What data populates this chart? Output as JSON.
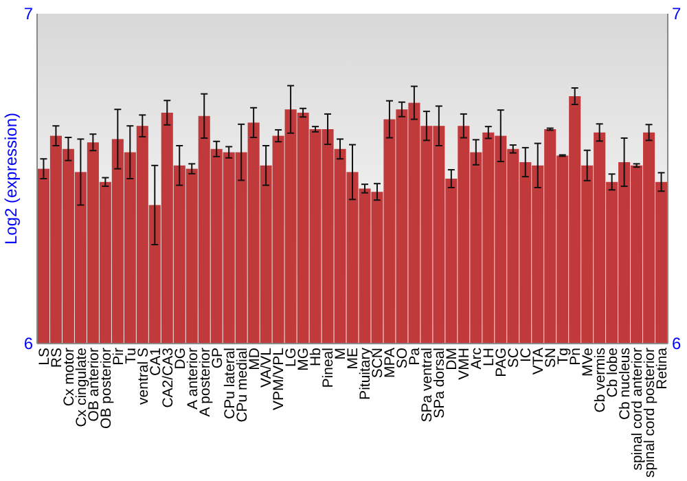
{
  "chart_data": {
    "type": "bar",
    "ylabel": "Log2 (expression)",
    "categories": [
      "LS",
      "RS",
      "Cx motor",
      "Cx cingulate",
      "OB anterior",
      "OB posterior",
      "Pir",
      "Tu",
      "ventral S",
      "CA1",
      "CA2/CA3",
      "DG",
      "A anterior",
      "A posterior",
      "GP",
      "CPu lateral",
      "CPu medial",
      "MD",
      "VA/VL",
      "VPM/VPL",
      "LG",
      "MG",
      "Hb",
      "Pineal",
      "M",
      "ME",
      "Pituitary",
      "SCN",
      "MPA",
      "SO",
      "Pa",
      "SPa ventral",
      "SPa dorsal",
      "DM",
      "VMH",
      "Arc",
      "LH",
      "PAG",
      "SC",
      "IC",
      "VTA",
      "SN",
      "Tg",
      "Pn",
      "MVe",
      "Cb vermis",
      "Cb lobe",
      "Cb nucleus",
      "spinal cord anterior",
      "spinal cord posterior",
      "Retina"
    ],
    "values": [
      6.53,
      6.63,
      6.59,
      6.52,
      6.61,
      6.49,
      6.62,
      6.58,
      6.66,
      6.42,
      6.7,
      6.54,
      6.53,
      6.69,
      6.59,
      6.58,
      6.58,
      6.67,
      6.54,
      6.63,
      6.71,
      6.7,
      6.65,
      6.65,
      6.59,
      6.52,
      6.47,
      6.46,
      6.68,
      6.71,
      6.73,
      6.66,
      6.66,
      6.5,
      6.66,
      6.58,
      6.64,
      6.63,
      6.59,
      6.55,
      6.54,
      6.65,
      6.57,
      6.75,
      6.54,
      6.64,
      6.49,
      6.55,
      6.54,
      6.64,
      6.49
    ],
    "errors": [
      0.03,
      0.03,
      0.035,
      0.1,
      0.025,
      0.013,
      0.09,
      0.08,
      0.033,
      0.12,
      0.037,
      0.06,
      0.015,
      0.067,
      0.023,
      0.017,
      0.085,
      0.045,
      0.06,
      0.018,
      0.072,
      0.013,
      0.008,
      0.046,
      0.03,
      0.083,
      0.013,
      0.025,
      0.056,
      0.022,
      0.05,
      0.044,
      0.06,
      0.027,
      0.036,
      0.038,
      0.018,
      0.078,
      0.012,
      0.044,
      0.067,
      0.003,
      0.002,
      0.025,
      0.046,
      0.026,
      0.024,
      0.073,
      0.005,
      0.024,
      0.028
    ],
    "color": "#c0393b",
    "ylim": [
      6,
      7
    ],
    "yticks": [
      6,
      7
    ],
    "y2lim": [
      6,
      7
    ],
    "y2ticks": [
      6,
      7
    ]
  }
}
